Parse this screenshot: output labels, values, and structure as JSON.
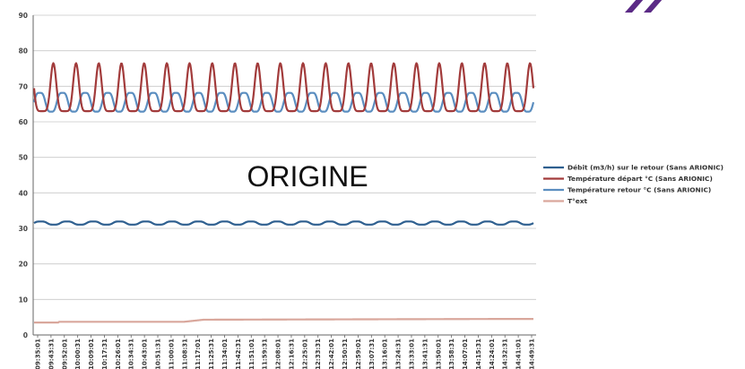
{
  "overlay_text": "ORIGINE",
  "chart_data": {
    "type": "line",
    "title": "",
    "xlabel": "",
    "ylabel": "",
    "ylim": [
      0,
      90
    ],
    "y_ticks": [
      0,
      10,
      20,
      30,
      40,
      50,
      60,
      70,
      80,
      90
    ],
    "grid": "horizontal",
    "legend_position": "right",
    "x_tick_labels": [
      "09:35:01",
      "09:43:31",
      "09:52:01",
      "10:00:31",
      "10:09:01",
      "10:17:31",
      "10:26:01",
      "10:34:31",
      "10:43:01",
      "10:51:31",
      "11:00:01",
      "11:08:31",
      "11:17:01",
      "11:25:31",
      "11:34:01",
      "11:42:31",
      "11:51:01",
      "11:59:31",
      "12:08:01",
      "12:16:31",
      "12:25:01",
      "12:33:31",
      "12:42:01",
      "12:50:31",
      "12:59:01",
      "13:07:31",
      "13:16:01",
      "13:24:31",
      "13:33:01",
      "13:41:31",
      "13:50:01",
      "13:58:31",
      "14:07:01",
      "14:15:31",
      "14:24:01",
      "14:32:31",
      "14:41:01",
      "14:49:31"
    ],
    "series": [
      {
        "name": "Débit (m3/h) sur le retour (Sans ARIONIC)",
        "color": "#2e5f8f",
        "style": "oscillating",
        "base": 31.5,
        "amp": 0.5,
        "periods": 19
      },
      {
        "name": "Température départ °C (Sans ARIONIC)",
        "color": "#a23b3b",
        "style": "peaked",
        "min": 63,
        "max": 76.5,
        "periods": 22
      },
      {
        "name": "Température retour °C (Sans ARIONIC)",
        "color": "#5b8ec0",
        "style": "oscillating",
        "base": 65.5,
        "amp": 3,
        "periods": 22
      },
      {
        "name": "T°ext",
        "color": "#d9a79c",
        "style": "step",
        "values": [
          3.5,
          3.7,
          4.3,
          4.5
        ]
      }
    ]
  }
}
